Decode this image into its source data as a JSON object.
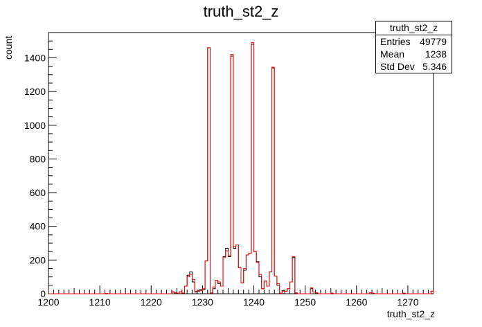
{
  "chart_data": {
    "type": "histogram",
    "title": "truth_st2_z",
    "xlabel": "truth_st2_z",
    "ylabel": "count",
    "xlim": [
      1200,
      1275
    ],
    "ylim": [
      0,
      1550
    ],
    "x_ticks": [
      1200,
      1210,
      1220,
      1230,
      1240,
      1250,
      1260,
      1270
    ],
    "y_ticks": [
      0,
      200,
      400,
      600,
      800,
      1000,
      1200,
      1400
    ],
    "bin_width": 0.5,
    "series": [
      {
        "color": "#000000",
        "bins": [
          [
            1211.0,
            2
          ],
          [
            1224.0,
            10
          ],
          [
            1224.5,
            5
          ],
          [
            1225.0,
            3
          ],
          [
            1225.5,
            12
          ],
          [
            1226.0,
            4
          ],
          [
            1226.5,
            45
          ],
          [
            1227.0,
            110
          ],
          [
            1227.5,
            130
          ],
          [
            1228.0,
            70
          ],
          [
            1228.5,
            10
          ],
          [
            1229.0,
            20
          ],
          [
            1229.5,
            25
          ],
          [
            1230.0,
            25
          ],
          [
            1230.5,
            195
          ],
          [
            1231.0,
            1460
          ],
          [
            1231.5,
            5
          ],
          [
            1232.0,
            30
          ],
          [
            1232.5,
            80
          ],
          [
            1233.0,
            60
          ],
          [
            1233.5,
            45
          ],
          [
            1234.0,
            220
          ],
          [
            1234.5,
            270
          ],
          [
            1235.0,
            220
          ],
          [
            1235.5,
            1410
          ],
          [
            1236.0,
            270
          ],
          [
            1236.5,
            290
          ],
          [
            1237.0,
            155
          ],
          [
            1237.5,
            65
          ],
          [
            1238.0,
            140
          ],
          [
            1238.5,
            230
          ],
          [
            1239.0,
            240
          ],
          [
            1239.5,
            1480
          ],
          [
            1240.0,
            250
          ],
          [
            1240.5,
            190
          ],
          [
            1241.0,
            100
          ],
          [
            1241.5,
            30
          ],
          [
            1242.0,
            75
          ],
          [
            1242.5,
            45
          ],
          [
            1243.0,
            130
          ],
          [
            1243.5,
            1340
          ],
          [
            1244.0,
            105
          ],
          [
            1244.5,
            50
          ],
          [
            1245.0,
            3
          ],
          [
            1245.5,
            18
          ],
          [
            1246.0,
            15
          ],
          [
            1246.5,
            30
          ],
          [
            1247.0,
            70
          ],
          [
            1247.5,
            215
          ],
          [
            1248.0,
            5
          ],
          [
            1251.0,
            30
          ],
          [
            1251.5,
            10
          ],
          [
            1252.0,
            5
          ],
          [
            1255.0,
            3
          ],
          [
            1262.5,
            6
          ],
          [
            1263.0,
            3
          ],
          [
            1269.0,
            4
          ],
          [
            1274.5,
            15
          ]
        ]
      },
      {
        "color": "#ff0000",
        "bins": [
          [
            1211.0,
            2
          ],
          [
            1224.0,
            12
          ],
          [
            1224.5,
            5
          ],
          [
            1225.0,
            3
          ],
          [
            1225.5,
            12
          ],
          [
            1226.0,
            4
          ],
          [
            1226.5,
            45
          ],
          [
            1227.0,
            100
          ],
          [
            1227.5,
            115
          ],
          [
            1228.0,
            85
          ],
          [
            1228.5,
            15
          ],
          [
            1229.0,
            15
          ],
          [
            1229.5,
            18
          ],
          [
            1230.0,
            30
          ],
          [
            1230.5,
            195
          ],
          [
            1231.0,
            1460
          ],
          [
            1231.5,
            5
          ],
          [
            1232.0,
            40
          ],
          [
            1232.5,
            80
          ],
          [
            1233.0,
            70
          ],
          [
            1233.5,
            45
          ],
          [
            1234.0,
            215
          ],
          [
            1234.5,
            255
          ],
          [
            1235.0,
            225
          ],
          [
            1235.5,
            1420
          ],
          [
            1236.0,
            280
          ],
          [
            1236.5,
            290
          ],
          [
            1237.0,
            155
          ],
          [
            1237.5,
            65
          ],
          [
            1238.0,
            150
          ],
          [
            1238.5,
            230
          ],
          [
            1239.0,
            240
          ],
          [
            1239.5,
            1490
          ],
          [
            1240.0,
            250
          ],
          [
            1240.5,
            185
          ],
          [
            1241.0,
            115
          ],
          [
            1241.5,
            30
          ],
          [
            1242.0,
            75
          ],
          [
            1242.5,
            45
          ],
          [
            1243.0,
            130
          ],
          [
            1243.5,
            1345
          ],
          [
            1244.0,
            105
          ],
          [
            1244.5,
            60
          ],
          [
            1245.0,
            3
          ],
          [
            1245.5,
            15
          ],
          [
            1246.0,
            15
          ],
          [
            1246.5,
            30
          ],
          [
            1247.0,
            70
          ],
          [
            1247.5,
            220
          ],
          [
            1248.0,
            5
          ],
          [
            1251.0,
            35
          ],
          [
            1251.5,
            10
          ],
          [
            1252.0,
            5
          ],
          [
            1255.0,
            3
          ],
          [
            1262.5,
            6
          ],
          [
            1263.0,
            3
          ],
          [
            1269.0,
            4
          ],
          [
            1274.5,
            15
          ]
        ]
      }
    ],
    "stats_box": {
      "title": "truth_st2_z",
      "entries_label": "Entries",
      "entries": "49779",
      "mean_label": "Mean",
      "mean": "1238",
      "std_label": "Std Dev",
      "std": "5.346"
    }
  }
}
